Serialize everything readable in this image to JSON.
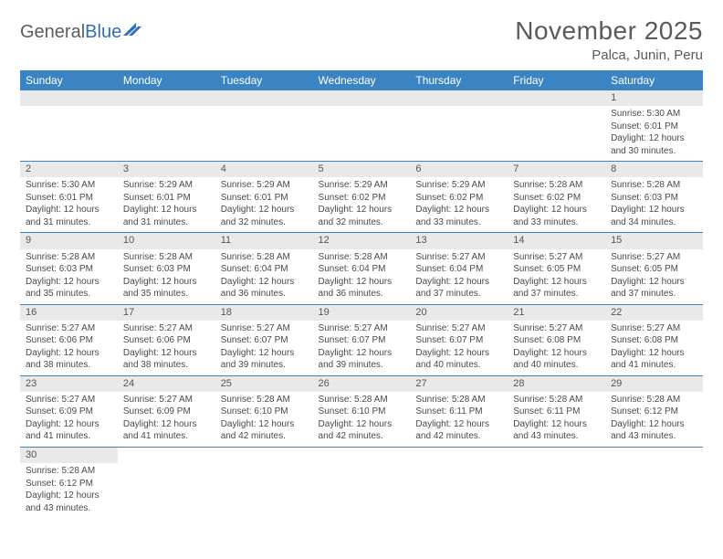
{
  "logo": {
    "text1": "General",
    "text2": "Blue"
  },
  "header": {
    "month": "November 2025",
    "location": "Palca, Junin, Peru"
  },
  "colors": {
    "header_bg": "#3b84c4",
    "header_text": "#ffffff",
    "daynum_bg": "#e9e9e9",
    "row_divider": "#3b84c4",
    "text": "#4a4a4a",
    "logo_gray": "#5c5c5c",
    "logo_blue": "#2e6fb7"
  },
  "weekdays": [
    "Sunday",
    "Monday",
    "Tuesday",
    "Wednesday",
    "Thursday",
    "Friday",
    "Saturday"
  ],
  "layout": {
    "first_weekday_index": 6,
    "days_in_month": 30
  },
  "days": {
    "1": {
      "sunrise": "5:30 AM",
      "sunset": "6:01 PM",
      "daylight": "12 hours and 30 minutes."
    },
    "2": {
      "sunrise": "5:30 AM",
      "sunset": "6:01 PM",
      "daylight": "12 hours and 31 minutes."
    },
    "3": {
      "sunrise": "5:29 AM",
      "sunset": "6:01 PM",
      "daylight": "12 hours and 31 minutes."
    },
    "4": {
      "sunrise": "5:29 AM",
      "sunset": "6:01 PM",
      "daylight": "12 hours and 32 minutes."
    },
    "5": {
      "sunrise": "5:29 AM",
      "sunset": "6:02 PM",
      "daylight": "12 hours and 32 minutes."
    },
    "6": {
      "sunrise": "5:29 AM",
      "sunset": "6:02 PM",
      "daylight": "12 hours and 33 minutes."
    },
    "7": {
      "sunrise": "5:28 AM",
      "sunset": "6:02 PM",
      "daylight": "12 hours and 33 minutes."
    },
    "8": {
      "sunrise": "5:28 AM",
      "sunset": "6:03 PM",
      "daylight": "12 hours and 34 minutes."
    },
    "9": {
      "sunrise": "5:28 AM",
      "sunset": "6:03 PM",
      "daylight": "12 hours and 35 minutes."
    },
    "10": {
      "sunrise": "5:28 AM",
      "sunset": "6:03 PM",
      "daylight": "12 hours and 35 minutes."
    },
    "11": {
      "sunrise": "5:28 AM",
      "sunset": "6:04 PM",
      "daylight": "12 hours and 36 minutes."
    },
    "12": {
      "sunrise": "5:28 AM",
      "sunset": "6:04 PM",
      "daylight": "12 hours and 36 minutes."
    },
    "13": {
      "sunrise": "5:27 AM",
      "sunset": "6:04 PM",
      "daylight": "12 hours and 37 minutes."
    },
    "14": {
      "sunrise": "5:27 AM",
      "sunset": "6:05 PM",
      "daylight": "12 hours and 37 minutes."
    },
    "15": {
      "sunrise": "5:27 AM",
      "sunset": "6:05 PM",
      "daylight": "12 hours and 37 minutes."
    },
    "16": {
      "sunrise": "5:27 AM",
      "sunset": "6:06 PM",
      "daylight": "12 hours and 38 minutes."
    },
    "17": {
      "sunrise": "5:27 AM",
      "sunset": "6:06 PM",
      "daylight": "12 hours and 38 minutes."
    },
    "18": {
      "sunrise": "5:27 AM",
      "sunset": "6:07 PM",
      "daylight": "12 hours and 39 minutes."
    },
    "19": {
      "sunrise": "5:27 AM",
      "sunset": "6:07 PM",
      "daylight": "12 hours and 39 minutes."
    },
    "20": {
      "sunrise": "5:27 AM",
      "sunset": "6:07 PM",
      "daylight": "12 hours and 40 minutes."
    },
    "21": {
      "sunrise": "5:27 AM",
      "sunset": "6:08 PM",
      "daylight": "12 hours and 40 minutes."
    },
    "22": {
      "sunrise": "5:27 AM",
      "sunset": "6:08 PM",
      "daylight": "12 hours and 41 minutes."
    },
    "23": {
      "sunrise": "5:27 AM",
      "sunset": "6:09 PM",
      "daylight": "12 hours and 41 minutes."
    },
    "24": {
      "sunrise": "5:27 AM",
      "sunset": "6:09 PM",
      "daylight": "12 hours and 41 minutes."
    },
    "25": {
      "sunrise": "5:28 AM",
      "sunset": "6:10 PM",
      "daylight": "12 hours and 42 minutes."
    },
    "26": {
      "sunrise": "5:28 AM",
      "sunset": "6:10 PM",
      "daylight": "12 hours and 42 minutes."
    },
    "27": {
      "sunrise": "5:28 AM",
      "sunset": "6:11 PM",
      "daylight": "12 hours and 42 minutes."
    },
    "28": {
      "sunrise": "5:28 AM",
      "sunset": "6:11 PM",
      "daylight": "12 hours and 43 minutes."
    },
    "29": {
      "sunrise": "5:28 AM",
      "sunset": "6:12 PM",
      "daylight": "12 hours and 43 minutes."
    },
    "30": {
      "sunrise": "5:28 AM",
      "sunset": "6:12 PM",
      "daylight": "12 hours and 43 minutes."
    }
  },
  "labels": {
    "sunrise": "Sunrise: ",
    "sunset": "Sunset: ",
    "daylight": "Daylight: "
  }
}
